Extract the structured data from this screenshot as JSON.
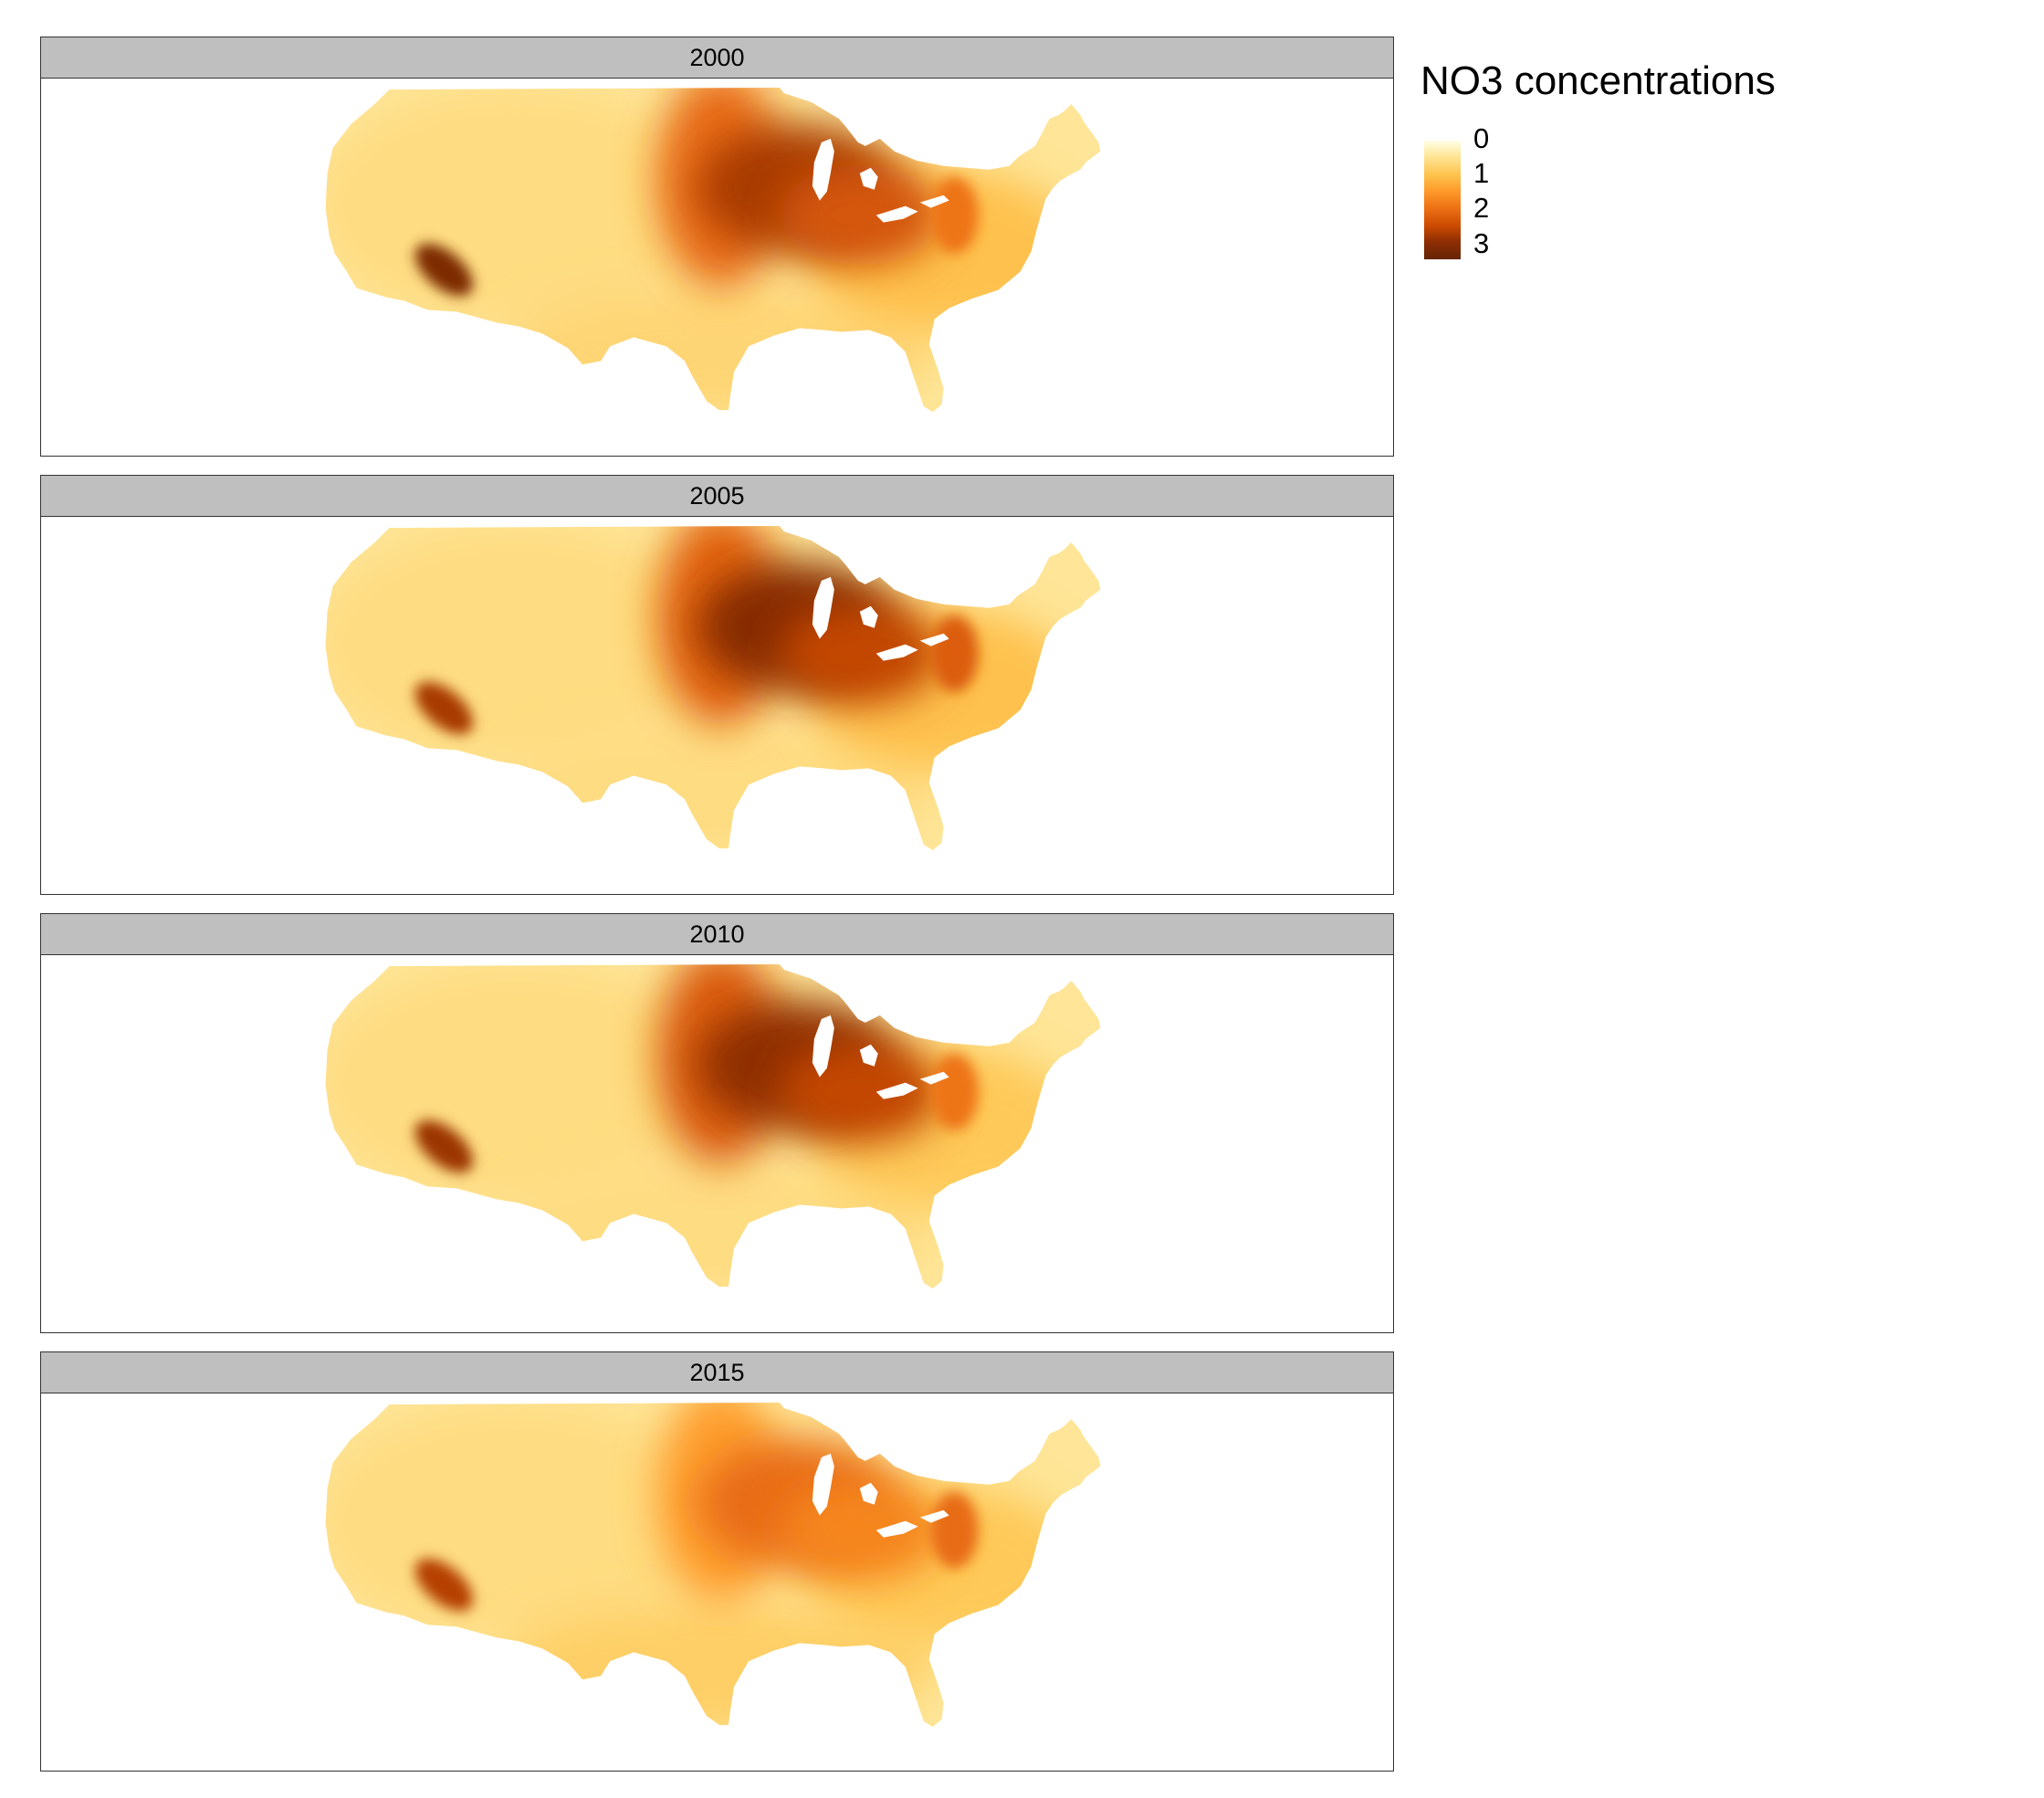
{
  "legend": {
    "title": "NO3 concentrations",
    "ticks": [
      {
        "value": 0,
        "label": "0"
      },
      {
        "value": 1,
        "label": "1"
      },
      {
        "value": 2,
        "label": "2"
      },
      {
        "value": 3,
        "label": "3"
      }
    ],
    "range": [
      0,
      3.4
    ],
    "palette": [
      "#ffffe5",
      "#fee391",
      "#fec44f",
      "#fe9929",
      "#ec7014",
      "#cc4c02",
      "#8c2d04",
      "#662506"
    ]
  },
  "panels": [
    {
      "label": "2000",
      "hotspots": {
        "great_plains": 2.0,
        "upper_midwest": 2.7,
        "ohio_valley": 2.3,
        "northeast": 1.9,
        "california": 3.1,
        "west": 0.6,
        "south": 0.7,
        "east": 1.0
      }
    },
    {
      "label": "2005",
      "hotspots": {
        "great_plains": 2.1,
        "upper_midwest": 3.0,
        "ohio_valley": 2.5,
        "northeast": 2.2,
        "california": 2.7,
        "west": 0.6,
        "south": 0.6,
        "east": 1.0
      }
    },
    {
      "label": "2010",
      "hotspots": {
        "great_plains": 2.2,
        "upper_midwest": 2.9,
        "ohio_valley": 2.5,
        "northeast": 1.9,
        "california": 2.8,
        "west": 0.6,
        "south": 0.6,
        "east": 0.9
      }
    },
    {
      "label": "2015",
      "hotspots": {
        "great_plains": 1.4,
        "upper_midwest": 2.0,
        "ohio_valley": 1.7,
        "northeast": 2.0,
        "california": 2.6,
        "west": 0.6,
        "south": 0.8,
        "east": 0.9
      }
    }
  ]
}
